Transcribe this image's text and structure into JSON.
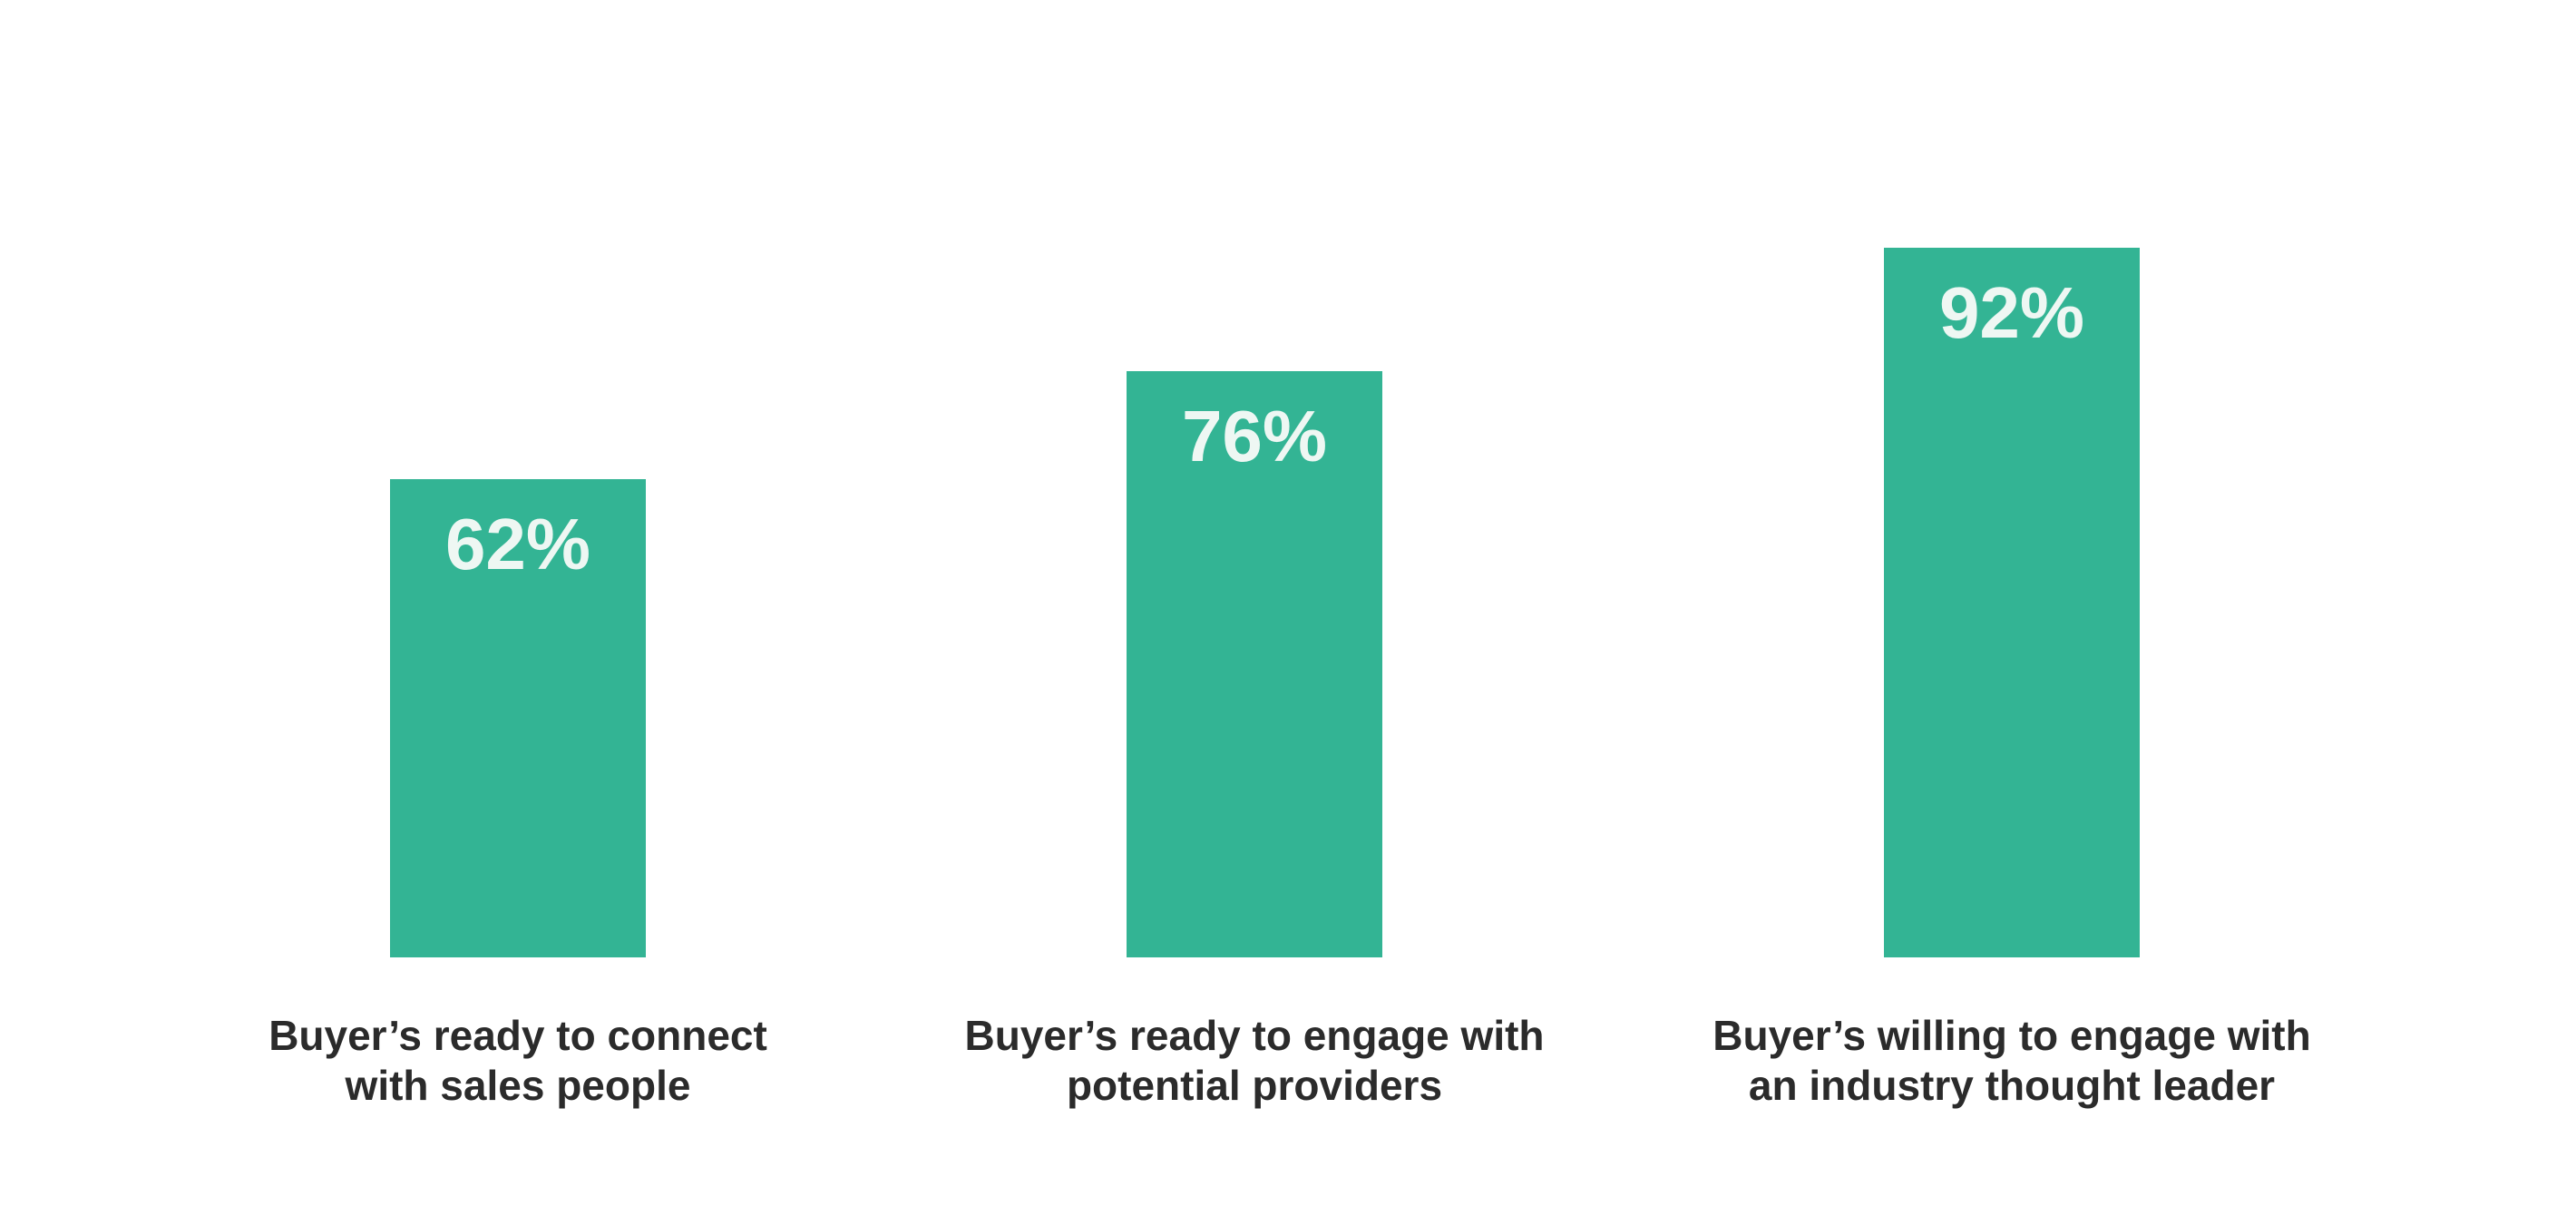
{
  "chart_data": {
    "type": "bar",
    "categories": [
      [
        "Buyer’s ready to connect",
        "with sales people"
      ],
      [
        "Buyer’s ready to engage with",
        "potential providers"
      ],
      [
        "Buyer’s willing to engage with",
        "an industry thought leader"
      ]
    ],
    "values": [
      62,
      76,
      92
    ],
    "value_labels": [
      "62%",
      "76%",
      "92%"
    ],
    "unit": "%",
    "title": "",
    "xlabel": "",
    "ylabel": "",
    "ylim": [
      0,
      100
    ],
    "grid": false,
    "legend": "none",
    "colors": {
      "bar": "#33b494",
      "value_text": "#eef7f3",
      "category_text": "#2b2b2b"
    }
  }
}
